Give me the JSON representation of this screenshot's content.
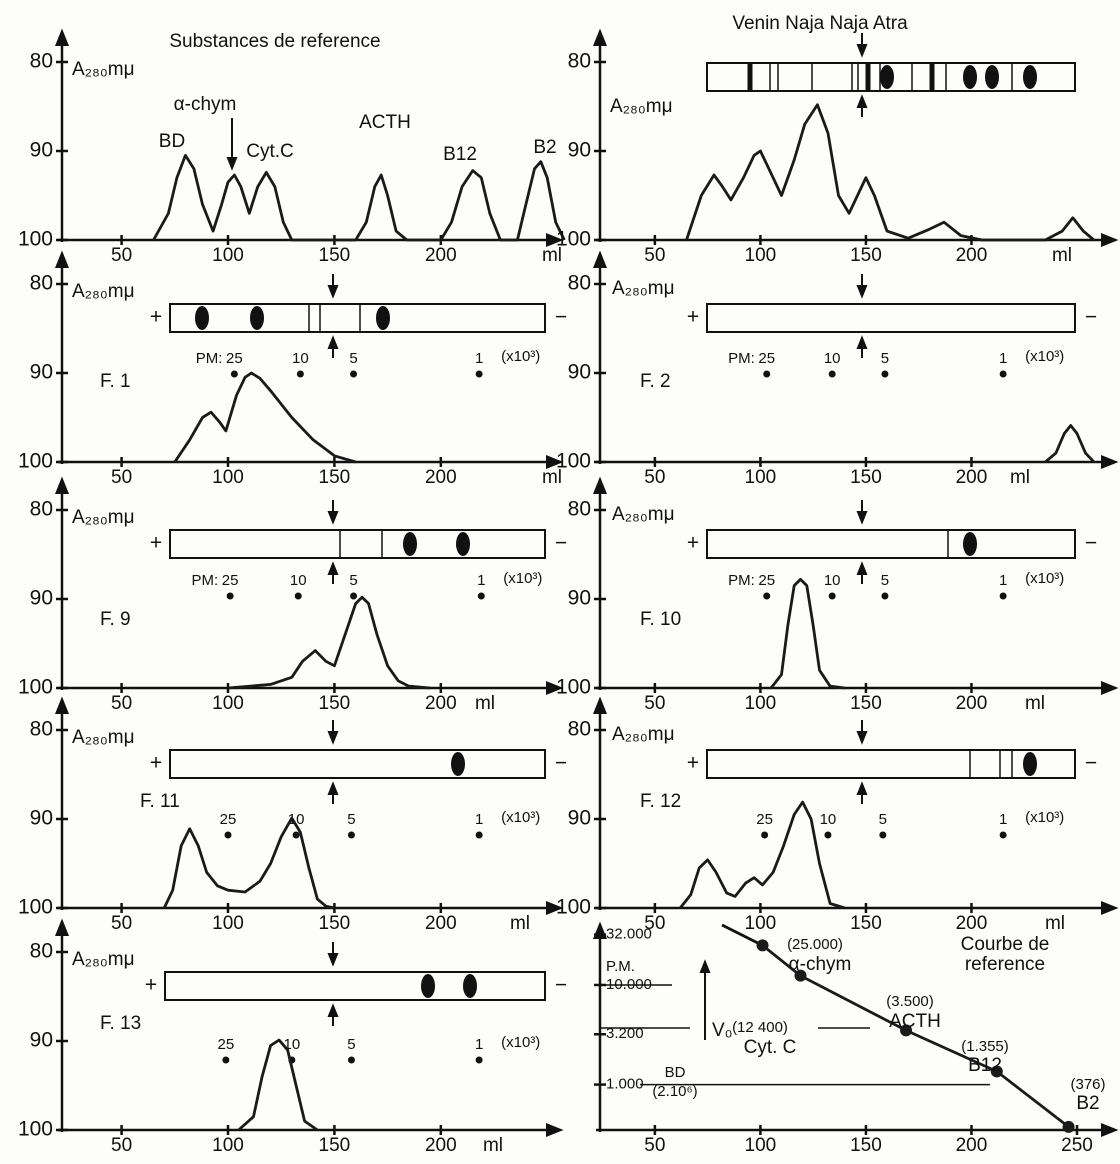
{
  "chart_data": [
    {
      "type": "line",
      "title": "Substances de reference",
      "y_label": "A₂₈₀mμ",
      "annotations": [
        "BD",
        "α-chym",
        "Cyt.C",
        "ACTH",
        "B12",
        "B2"
      ],
      "x": [
        65,
        72,
        76,
        80,
        84,
        88,
        93,
        97,
        100,
        103,
        106,
        110,
        114,
        118,
        122,
        126,
        130,
        160,
        165,
        169,
        172,
        175,
        179,
        184,
        200,
        205,
        210,
        215,
        219,
        223,
        228,
        236,
        240,
        244,
        247,
        250,
        254,
        258
      ],
      "values": [
        100,
        97,
        93,
        90.5,
        92,
        96,
        99,
        96,
        93.5,
        92.7,
        94,
        97,
        94,
        92.4,
        94,
        98,
        100,
        100,
        98,
        94,
        92.7,
        95,
        99,
        100,
        100,
        98,
        94,
        92.2,
        93,
        97,
        100,
        100,
        96,
        92,
        91.2,
        93,
        98,
        100
      ],
      "color": "#1a1a1a",
      "xlim": [
        22,
        256
      ],
      "xticks": [
        50,
        100,
        150,
        200
      ],
      "x_unit": "ml",
      "ylim": [
        100,
        80
      ],
      "yticks": [
        80,
        90,
        100
      ]
    },
    {
      "type": "line",
      "title": "Venin Naja Naja Atra",
      "y_label": "A₂₈₀mμ",
      "x": [
        65,
        72,
        78,
        82,
        86,
        92,
        97,
        100,
        104,
        110,
        116,
        121,
        127,
        132,
        137,
        142,
        146,
        150,
        154,
        160,
        170,
        180,
        187,
        195,
        205,
        235,
        243,
        248,
        253,
        258
      ],
      "values": [
        100,
        95,
        92.7,
        94,
        95.5,
        93,
        90.5,
        90,
        92,
        95,
        91,
        87,
        84.8,
        88,
        95,
        97,
        95,
        93,
        95,
        99,
        99.8,
        98.8,
        98,
        99.5,
        100,
        100,
        99,
        97.5,
        99,
        100
      ],
      "color": "#1a1a1a",
      "xlim": [
        24,
        268
      ],
      "xticks": [
        50,
        100,
        150,
        200
      ],
      "x_unit": "ml",
      "ylim": [
        100,
        80
      ],
      "yticks": [
        80,
        90,
        100
      ]
    },
    {
      "type": "line",
      "panel_label": "F. 1",
      "y_label": "A₂₈₀mμ",
      "strip": {
        "plus": "+",
        "minus": "−"
      },
      "marker_prefix": "PM:",
      "marker_unit": "(x10³)",
      "markers": [
        {
          "label": "25",
          "x": 103
        },
        {
          "label": "10",
          "x": 134
        },
        {
          "label": "5",
          "x": 159
        },
        {
          "label": "1",
          "x": 218
        }
      ],
      "x": [
        75,
        82,
        88,
        92,
        96,
        99,
        104,
        108,
        111,
        115,
        120,
        130,
        140,
        150,
        160
      ],
      "values": [
        100,
        97.5,
        95,
        94.4,
        95.5,
        96.5,
        92.5,
        90.5,
        90,
        90.6,
        92,
        95,
        97.5,
        99.3,
        100
      ],
      "color": "#1a1a1a",
      "xlim": [
        22,
        256
      ],
      "xticks": [
        50,
        100,
        150,
        200
      ],
      "x_unit": "ml",
      "ylim": [
        100,
        80
      ],
      "yticks": [
        80,
        90,
        100
      ]
    },
    {
      "type": "line",
      "panel_label": "F. 2",
      "y_label": "A₂₈₀mμ",
      "strip": {
        "plus": "+",
        "minus": "−"
      },
      "marker_prefix": "PM:",
      "marker_unit": "(x10³)",
      "markers": [
        {
          "label": "25",
          "x": 103
        },
        {
          "label": "10",
          "x": 134
        },
        {
          "label": "5",
          "x": 159
        },
        {
          "label": "1",
          "x": 215
        }
      ],
      "x": [
        235,
        240,
        244,
        247,
        250,
        254,
        258
      ],
      "values": [
        100,
        99,
        96.8,
        95.9,
        96.8,
        99,
        100
      ],
      "color": "#1a1a1a",
      "xlim": [
        24,
        268
      ],
      "xticks": [
        50,
        100,
        150,
        200
      ],
      "x_unit": "ml",
      "ylim": [
        100,
        80
      ],
      "yticks": [
        80,
        90,
        100
      ]
    },
    {
      "type": "line",
      "panel_label": "F. 9",
      "y_label": "A₂₈₀mμ",
      "strip": {
        "plus": "+",
        "minus": "−"
      },
      "marker_prefix": "PM:",
      "marker_unit": "(x10³)",
      "markers": [
        {
          "label": "25",
          "x": 101
        },
        {
          "label": "10",
          "x": 133
        },
        {
          "label": "5",
          "x": 159
        },
        {
          "label": "1",
          "x": 219
        }
      ],
      "x": [
        100,
        120,
        130,
        135,
        141,
        146,
        150,
        155,
        160,
        163,
        166,
        170,
        175,
        180,
        185,
        195
      ],
      "values": [
        100,
        99.6,
        98.8,
        97,
        95.8,
        97,
        97.5,
        94,
        90.5,
        89.8,
        90.5,
        94,
        97.5,
        99.2,
        99.8,
        100
      ],
      "color": "#1a1a1a",
      "xlim": [
        22,
        256
      ],
      "xticks": [
        50,
        100,
        150,
        200
      ],
      "x_unit": "ml",
      "ylim": [
        100,
        80
      ],
      "yticks": [
        80,
        90,
        100
      ]
    },
    {
      "type": "line",
      "panel_label": "F. 10",
      "y_label": "A₂₈₀mμ",
      "strip": {
        "plus": "+",
        "minus": "−"
      },
      "marker_prefix": "PM:",
      "marker_unit": "(x10³)",
      "markers": [
        {
          "label": "25",
          "x": 103
        },
        {
          "label": "10",
          "x": 134
        },
        {
          "label": "5",
          "x": 159
        },
        {
          "label": "1",
          "x": 215
        }
      ],
      "x": [
        105,
        110,
        113,
        116,
        119,
        122,
        125,
        128,
        133,
        140
      ],
      "values": [
        100,
        98.5,
        93,
        88.5,
        87.8,
        88.5,
        93,
        98,
        99.8,
        100
      ],
      "color": "#1a1a1a",
      "xlim": [
        24,
        268
      ],
      "xticks": [
        50,
        100,
        150,
        200
      ],
      "x_unit": "ml",
      "ylim": [
        100,
        80
      ],
      "yticks": [
        80,
        90,
        100
      ]
    },
    {
      "type": "line",
      "panel_label": "F. 11",
      "y_label": "A₂₈₀mμ",
      "strip": {
        "plus": "+",
        "minus": "−"
      },
      "marker_unit": "(x10³)",
      "markers": [
        {
          "label": "25",
          "x": 100
        },
        {
          "label": "10",
          "x": 132
        },
        {
          "label": "5",
          "x": 158
        },
        {
          "label": "1",
          "x": 218
        }
      ],
      "x": [
        70,
        74,
        78,
        82,
        86,
        90,
        95,
        100,
        108,
        115,
        120,
        125,
        130,
        134,
        138,
        142,
        146,
        150
      ],
      "values": [
        100,
        98,
        93,
        91.1,
        93,
        96,
        97.5,
        98,
        98.2,
        97,
        95,
        92,
        89.9,
        91.5,
        95.5,
        99,
        99.8,
        100
      ],
      "color": "#1a1a1a",
      "xlim": [
        22,
        256
      ],
      "xticks": [
        50,
        100,
        150,
        200
      ],
      "x_unit": "ml",
      "ylim": [
        100,
        80
      ],
      "yticks": [
        80,
        90,
        100
      ]
    },
    {
      "type": "line",
      "panel_label": "F. 12",
      "y_label": "A₂₈₀mμ",
      "strip": {
        "plus": "+",
        "minus": "−"
      },
      "marker_unit": "(x10³)",
      "markers": [
        {
          "label": "25",
          "x": 102
        },
        {
          "label": "10",
          "x": 132
        },
        {
          "label": "5",
          "x": 158
        },
        {
          "label": "1",
          "x": 215
        }
      ],
      "x": [
        62,
        67,
        71,
        75,
        79,
        84,
        88,
        93,
        97,
        101,
        106,
        111,
        116,
        120,
        124,
        128,
        133,
        140
      ],
      "values": [
        100,
        98.5,
        95.5,
        94.6,
        96,
        98.3,
        98.7,
        97.2,
        96.6,
        97.4,
        96,
        93,
        89.5,
        88.1,
        90,
        95,
        99.5,
        100
      ],
      "color": "#1a1a1a",
      "xlim": [
        24,
        268
      ],
      "xticks": [
        50,
        100,
        150,
        200
      ],
      "x_unit": "ml",
      "ylim": [
        100,
        80
      ],
      "yticks": [
        80,
        90,
        100
      ]
    },
    {
      "type": "line",
      "panel_label": "F. 13",
      "y_label": "A₂₈₀mμ",
      "strip": {
        "plus": "+",
        "minus": "−"
      },
      "marker_unit": "(x10³)",
      "markers": [
        {
          "label": "25",
          "x": 99
        },
        {
          "label": "10",
          "x": 130
        },
        {
          "label": "5",
          "x": 158
        },
        {
          "label": "1",
          "x": 218
        }
      ],
      "x": [
        105,
        112,
        116,
        120,
        124,
        128,
        132,
        136,
        142
      ],
      "values": [
        100,
        98.5,
        94,
        90.5,
        89.9,
        91,
        95,
        99,
        100
      ],
      "color": "#1a1a1a",
      "xlim": [
        22,
        256
      ],
      "xticks": [
        50,
        100,
        150,
        200
      ],
      "x_unit": "ml",
      "ylim": [
        100,
        80
      ],
      "yticks": [
        80,
        90,
        100
      ]
    },
    {
      "type": "scatter",
      "title_lines": [
        "Courbe de",
        "reference"
      ],
      "y_label": "P.M.",
      "annotations": [
        "V₀",
        "BD",
        "(2.10⁶)"
      ],
      "categories": [
        "α-chym",
        "Cyt. C",
        "ACTH",
        "B12",
        "B2"
      ],
      "x": [
        101,
        119,
        169,
        212,
        246
      ],
      "values": [
        25000,
        12400,
        3500,
        1355,
        376
      ],
      "value_labels": [
        "(25.000)",
        "(12 400)",
        "(3.500)",
        "(1.355)",
        "(376)"
      ],
      "color": "#1a1a1a",
      "xlim": [
        24,
        268
      ],
      "xticks": [
        50,
        100,
        150,
        200,
        250
      ],
      "log_y": true,
      "ylim": [
        350,
        40000
      ],
      "yticks": [
        {
          "value": 32000,
          "label": "32.000"
        },
        {
          "value": 10000,
          "label": "10.000"
        },
        {
          "value": 3200,
          "label": "3.200"
        },
        {
          "value": 1000,
          "label": "1.000"
        }
      ]
    }
  ]
}
